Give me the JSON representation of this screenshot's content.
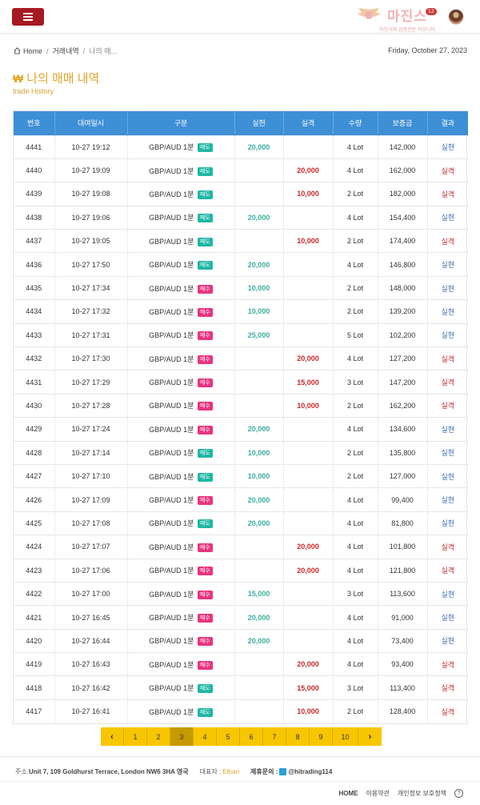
{
  "header": {
    "menu_icon": "hamburger-icon",
    "logo_text": "마진스",
    "logo_badge": "12",
    "logo_tagline": "마진거래 검증전문 커뮤니티"
  },
  "breadcrumb": {
    "home": "Home",
    "section": "거래내역",
    "current": "나의 매..."
  },
  "date": "Friday, October 27, 2023",
  "page": {
    "title": "나의 매매 내역",
    "subtitle": "trade History"
  },
  "colors": {
    "accent": "#a61b22",
    "header_blue": "#3d8fd6",
    "profit": "#3aae9d",
    "loss": "#c42a2a",
    "pager_yellow": "#f7c600",
    "sell_badge": "#1fb7a6",
    "buy_badge": "#e9337f"
  },
  "table": {
    "columns": [
      "번호",
      "대여일시",
      "구분",
      "실현",
      "실격",
      "수량",
      "보증금",
      "결과"
    ],
    "rows": [
      {
        "id": "4441",
        "time": "10-27 19:12",
        "pair": "GBP/AUD 1분",
        "side": "매도",
        "profit": "20,000",
        "loss": "",
        "qty": "4 Lot",
        "deposit": "142,000",
        "result": "실현"
      },
      {
        "id": "4440",
        "time": "10-27 19:09",
        "pair": "GBP/AUD 1분",
        "side": "매도",
        "profit": "",
        "loss": "20,000",
        "qty": "4 Lot",
        "deposit": "162,000",
        "result": "실격"
      },
      {
        "id": "4439",
        "time": "10-27 19:08",
        "pair": "GBP/AUD 1분",
        "side": "매도",
        "profit": "",
        "loss": "10,000",
        "qty": "2 Lot",
        "deposit": "182,000",
        "result": "실격"
      },
      {
        "id": "4438",
        "time": "10-27 19:06",
        "pair": "GBP/AUD 1분",
        "side": "매도",
        "profit": "20,000",
        "loss": "",
        "qty": "4 Lot",
        "deposit": "154,400",
        "result": "실현"
      },
      {
        "id": "4437",
        "time": "10-27 19:05",
        "pair": "GBP/AUD 1분",
        "side": "매도",
        "profit": "",
        "loss": "10,000",
        "qty": "2 Lot",
        "deposit": "174,400",
        "result": "실격"
      },
      {
        "id": "4436",
        "time": "10-27 17:50",
        "pair": "GBP/AUD 1분",
        "side": "매도",
        "profit": "20,000",
        "loss": "",
        "qty": "4 Lot",
        "deposit": "146,800",
        "result": "실현"
      },
      {
        "id": "4435",
        "time": "10-27 17:34",
        "pair": "GBP/AUD 1분",
        "side": "매수",
        "profit": "10,000",
        "loss": "",
        "qty": "2 Lot",
        "deposit": "148,000",
        "result": "실현"
      },
      {
        "id": "4434",
        "time": "10-27 17:32",
        "pair": "GBP/AUD 1분",
        "side": "매수",
        "profit": "10,000",
        "loss": "",
        "qty": "2 Lot",
        "deposit": "139,200",
        "result": "실현"
      },
      {
        "id": "4433",
        "time": "10-27 17:31",
        "pair": "GBP/AUD 1분",
        "side": "매수",
        "profit": "25,000",
        "loss": "",
        "qty": "5 Lot",
        "deposit": "102,200",
        "result": "실현"
      },
      {
        "id": "4432",
        "time": "10-27 17:30",
        "pair": "GBP/AUD 1분",
        "side": "매수",
        "profit": "",
        "loss": "20,000",
        "qty": "4 Lot",
        "deposit": "127,200",
        "result": "실격"
      },
      {
        "id": "4431",
        "time": "10-27 17:29",
        "pair": "GBP/AUD 1분",
        "side": "매수",
        "profit": "",
        "loss": "15,000",
        "qty": "3 Lot",
        "deposit": "147,200",
        "result": "실격"
      },
      {
        "id": "4430",
        "time": "10-27 17:28",
        "pair": "GBP/AUD 1분",
        "side": "매수",
        "profit": "",
        "loss": "10,000",
        "qty": "2 Lot",
        "deposit": "162,200",
        "result": "실격"
      },
      {
        "id": "4429",
        "time": "10-27 17:24",
        "pair": "GBP/AUD 1분",
        "side": "매수",
        "profit": "20,000",
        "loss": "",
        "qty": "4 Lot",
        "deposit": "134,600",
        "result": "실현"
      },
      {
        "id": "4428",
        "time": "10-27 17:14",
        "pair": "GBP/AUD 1분",
        "side": "매도",
        "profit": "10,000",
        "loss": "",
        "qty": "2 Lot",
        "deposit": "135,800",
        "result": "실현"
      },
      {
        "id": "4427",
        "time": "10-27 17:10",
        "pair": "GBP/AUD 1분",
        "side": "매도",
        "profit": "10,000",
        "loss": "",
        "qty": "2 Lot",
        "deposit": "127,000",
        "result": "실현"
      },
      {
        "id": "4426",
        "time": "10-27 17:09",
        "pair": "GBP/AUD 1분",
        "side": "매수",
        "profit": "20,000",
        "loss": "",
        "qty": "4 Lot",
        "deposit": "99,400",
        "result": "실현"
      },
      {
        "id": "4425",
        "time": "10-27 17:08",
        "pair": "GBP/AUD 1분",
        "side": "매도",
        "profit": "20,000",
        "loss": "",
        "qty": "4 Lot",
        "deposit": "81,800",
        "result": "실현"
      },
      {
        "id": "4424",
        "time": "10-27 17:07",
        "pair": "GBP/AUD 1분",
        "side": "매수",
        "profit": "",
        "loss": "20,000",
        "qty": "4 Lot",
        "deposit": "101,800",
        "result": "실격"
      },
      {
        "id": "4423",
        "time": "10-27 17:06",
        "pair": "GBP/AUD 1분",
        "side": "매수",
        "profit": "",
        "loss": "20,000",
        "qty": "4 Lot",
        "deposit": "121,800",
        "result": "실격"
      },
      {
        "id": "4422",
        "time": "10-27 17:00",
        "pair": "GBP/AUD 1분",
        "side": "매수",
        "profit": "15,000",
        "loss": "",
        "qty": "3 Lot",
        "deposit": "113,600",
        "result": "실현"
      },
      {
        "id": "4421",
        "time": "10-27 16:45",
        "pair": "GBP/AUD 1분",
        "side": "매수",
        "profit": "20,000",
        "loss": "",
        "qty": "4 Lot",
        "deposit": "91,000",
        "result": "실현"
      },
      {
        "id": "4420",
        "time": "10-27 16:44",
        "pair": "GBP/AUD 1분",
        "side": "매수",
        "profit": "20,000",
        "loss": "",
        "qty": "4 Lot",
        "deposit": "73,400",
        "result": "실현"
      },
      {
        "id": "4419",
        "time": "10-27 16:43",
        "pair": "GBP/AUD 1분",
        "side": "매수",
        "profit": "",
        "loss": "20,000",
        "qty": "4 Lot",
        "deposit": "93,400",
        "result": "실격"
      },
      {
        "id": "4418",
        "time": "10-27 16:42",
        "pair": "GBP/AUD 1분",
        "side": "매도",
        "profit": "",
        "loss": "15,000",
        "qty": "3 Lot",
        "deposit": "113,400",
        "result": "실격"
      },
      {
        "id": "4417",
        "time": "10-27 16:41",
        "pair": "GBP/AUD 1분",
        "side": "매도",
        "profit": "",
        "loss": "10,000",
        "qty": "2 Lot",
        "deposit": "128,400",
        "result": "실격"
      }
    ]
  },
  "pagination": {
    "prev": "‹",
    "next": "›",
    "pages": [
      "1",
      "2",
      "3",
      "4",
      "5",
      "6",
      "7",
      "8",
      "9",
      "10"
    ],
    "current": "3"
  },
  "footer": {
    "address_label": "주소:",
    "address": "Unit 7, 109 Goldhurst Terrace, London NW6 3HA 영국",
    "rep_label": "대표자 :",
    "rep_name": "Ethan",
    "contact_label": "제휴문의 :",
    "contact": "@hitrading114",
    "links": [
      "HOME",
      "이용약관",
      "개인정보 보호정책"
    ],
    "help": "?"
  }
}
